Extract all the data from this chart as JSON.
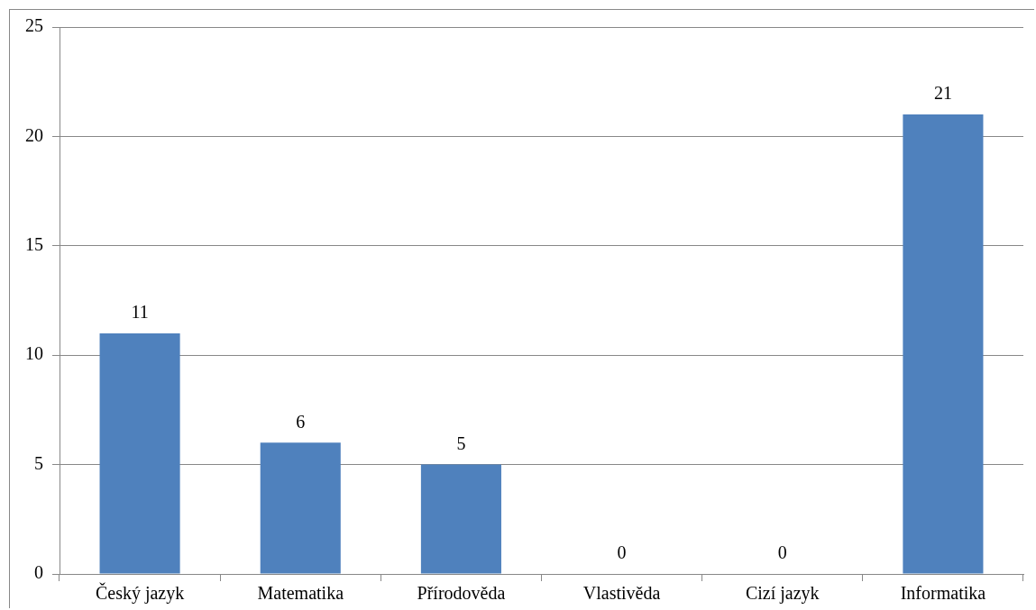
{
  "chart_data": {
    "type": "bar",
    "categories": [
      "Český jazyk",
      "Matematika",
      "Přírodověda",
      "Vlastivěda",
      "Cizí jazyk",
      "Informatika"
    ],
    "values": [
      11,
      6,
      5,
      0,
      0,
      21
    ],
    "color": "#4f81bd",
    "ylim": [
      0,
      25
    ],
    "yticks": [
      0,
      5,
      10,
      15,
      20,
      25
    ],
    "grid": "y",
    "legend": false,
    "data_labels": true
  }
}
